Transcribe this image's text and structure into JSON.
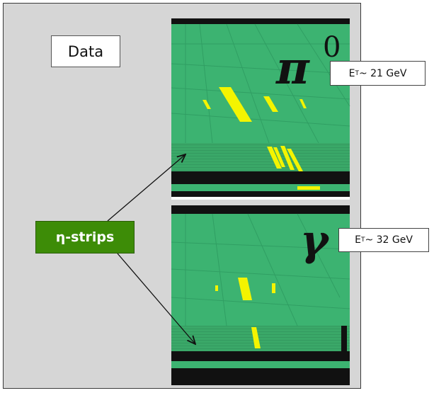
{
  "data_label": "Data",
  "pi_panel": {
    "symbol": "π",
    "superscript": "0",
    "et_prefix": "E",
    "et_sub": "T",
    "et_value": "~ 21 GeV"
  },
  "gamma_panel": {
    "symbol": "γ",
    "et_prefix": "E",
    "et_sub": "T",
    "et_value": "~ 32 GeV"
  },
  "eta_strips_label": "η-strips",
  "colors": {
    "background": "#d6d6d6",
    "detector": "#3cb371",
    "hits": "#f4f400",
    "label_green": "#3d8c07"
  }
}
